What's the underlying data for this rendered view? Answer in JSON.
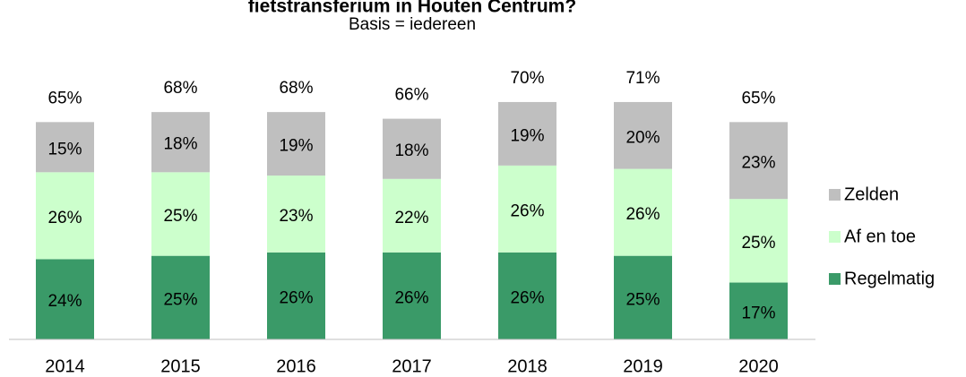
{
  "chart_data": {
    "type": "stacked_bar",
    "title": "fietstransferium in Houten Centrum?",
    "subtitle": "Basis = iedereen",
    "categories": [
      "2014",
      "2015",
      "2016",
      "2017",
      "2018",
      "2019",
      "2020"
    ],
    "series": [
      {
        "name": "Regelmatig",
        "color": "#3a9a68",
        "label_color": "#ffffff",
        "values": [
          24,
          25,
          26,
          26,
          26,
          25,
          17
        ],
        "value_labels": [
          "24%",
          "25%",
          "26%",
          "26%",
          "26%",
          "25%",
          "17%"
        ]
      },
      {
        "name": "Af en toe",
        "color": "#ccffcc",
        "label_color": "#000000",
        "values": [
          26,
          25,
          23,
          22,
          26,
          26,
          25
        ],
        "value_labels": [
          "26%",
          "25%",
          "23%",
          "22%",
          "26%",
          "26%",
          "25%"
        ]
      },
      {
        "name": "Zelden",
        "color": "#bfbfbf",
        "label_color": "#000000",
        "values": [
          15,
          18,
          19,
          18,
          19,
          20,
          23
        ],
        "value_labels": [
          "15%",
          "18%",
          "19%",
          "18%",
          "19%",
          "20%",
          "23%"
        ]
      }
    ],
    "totals": [
      65,
      68,
      68,
      66,
      70,
      71,
      65
    ],
    "total_labels": [
      "65%",
      "68%",
      "68%",
      "66%",
      "70%",
      "71%",
      "65%"
    ],
    "ylim": [
      0,
      75
    ],
    "legend": "right"
  }
}
